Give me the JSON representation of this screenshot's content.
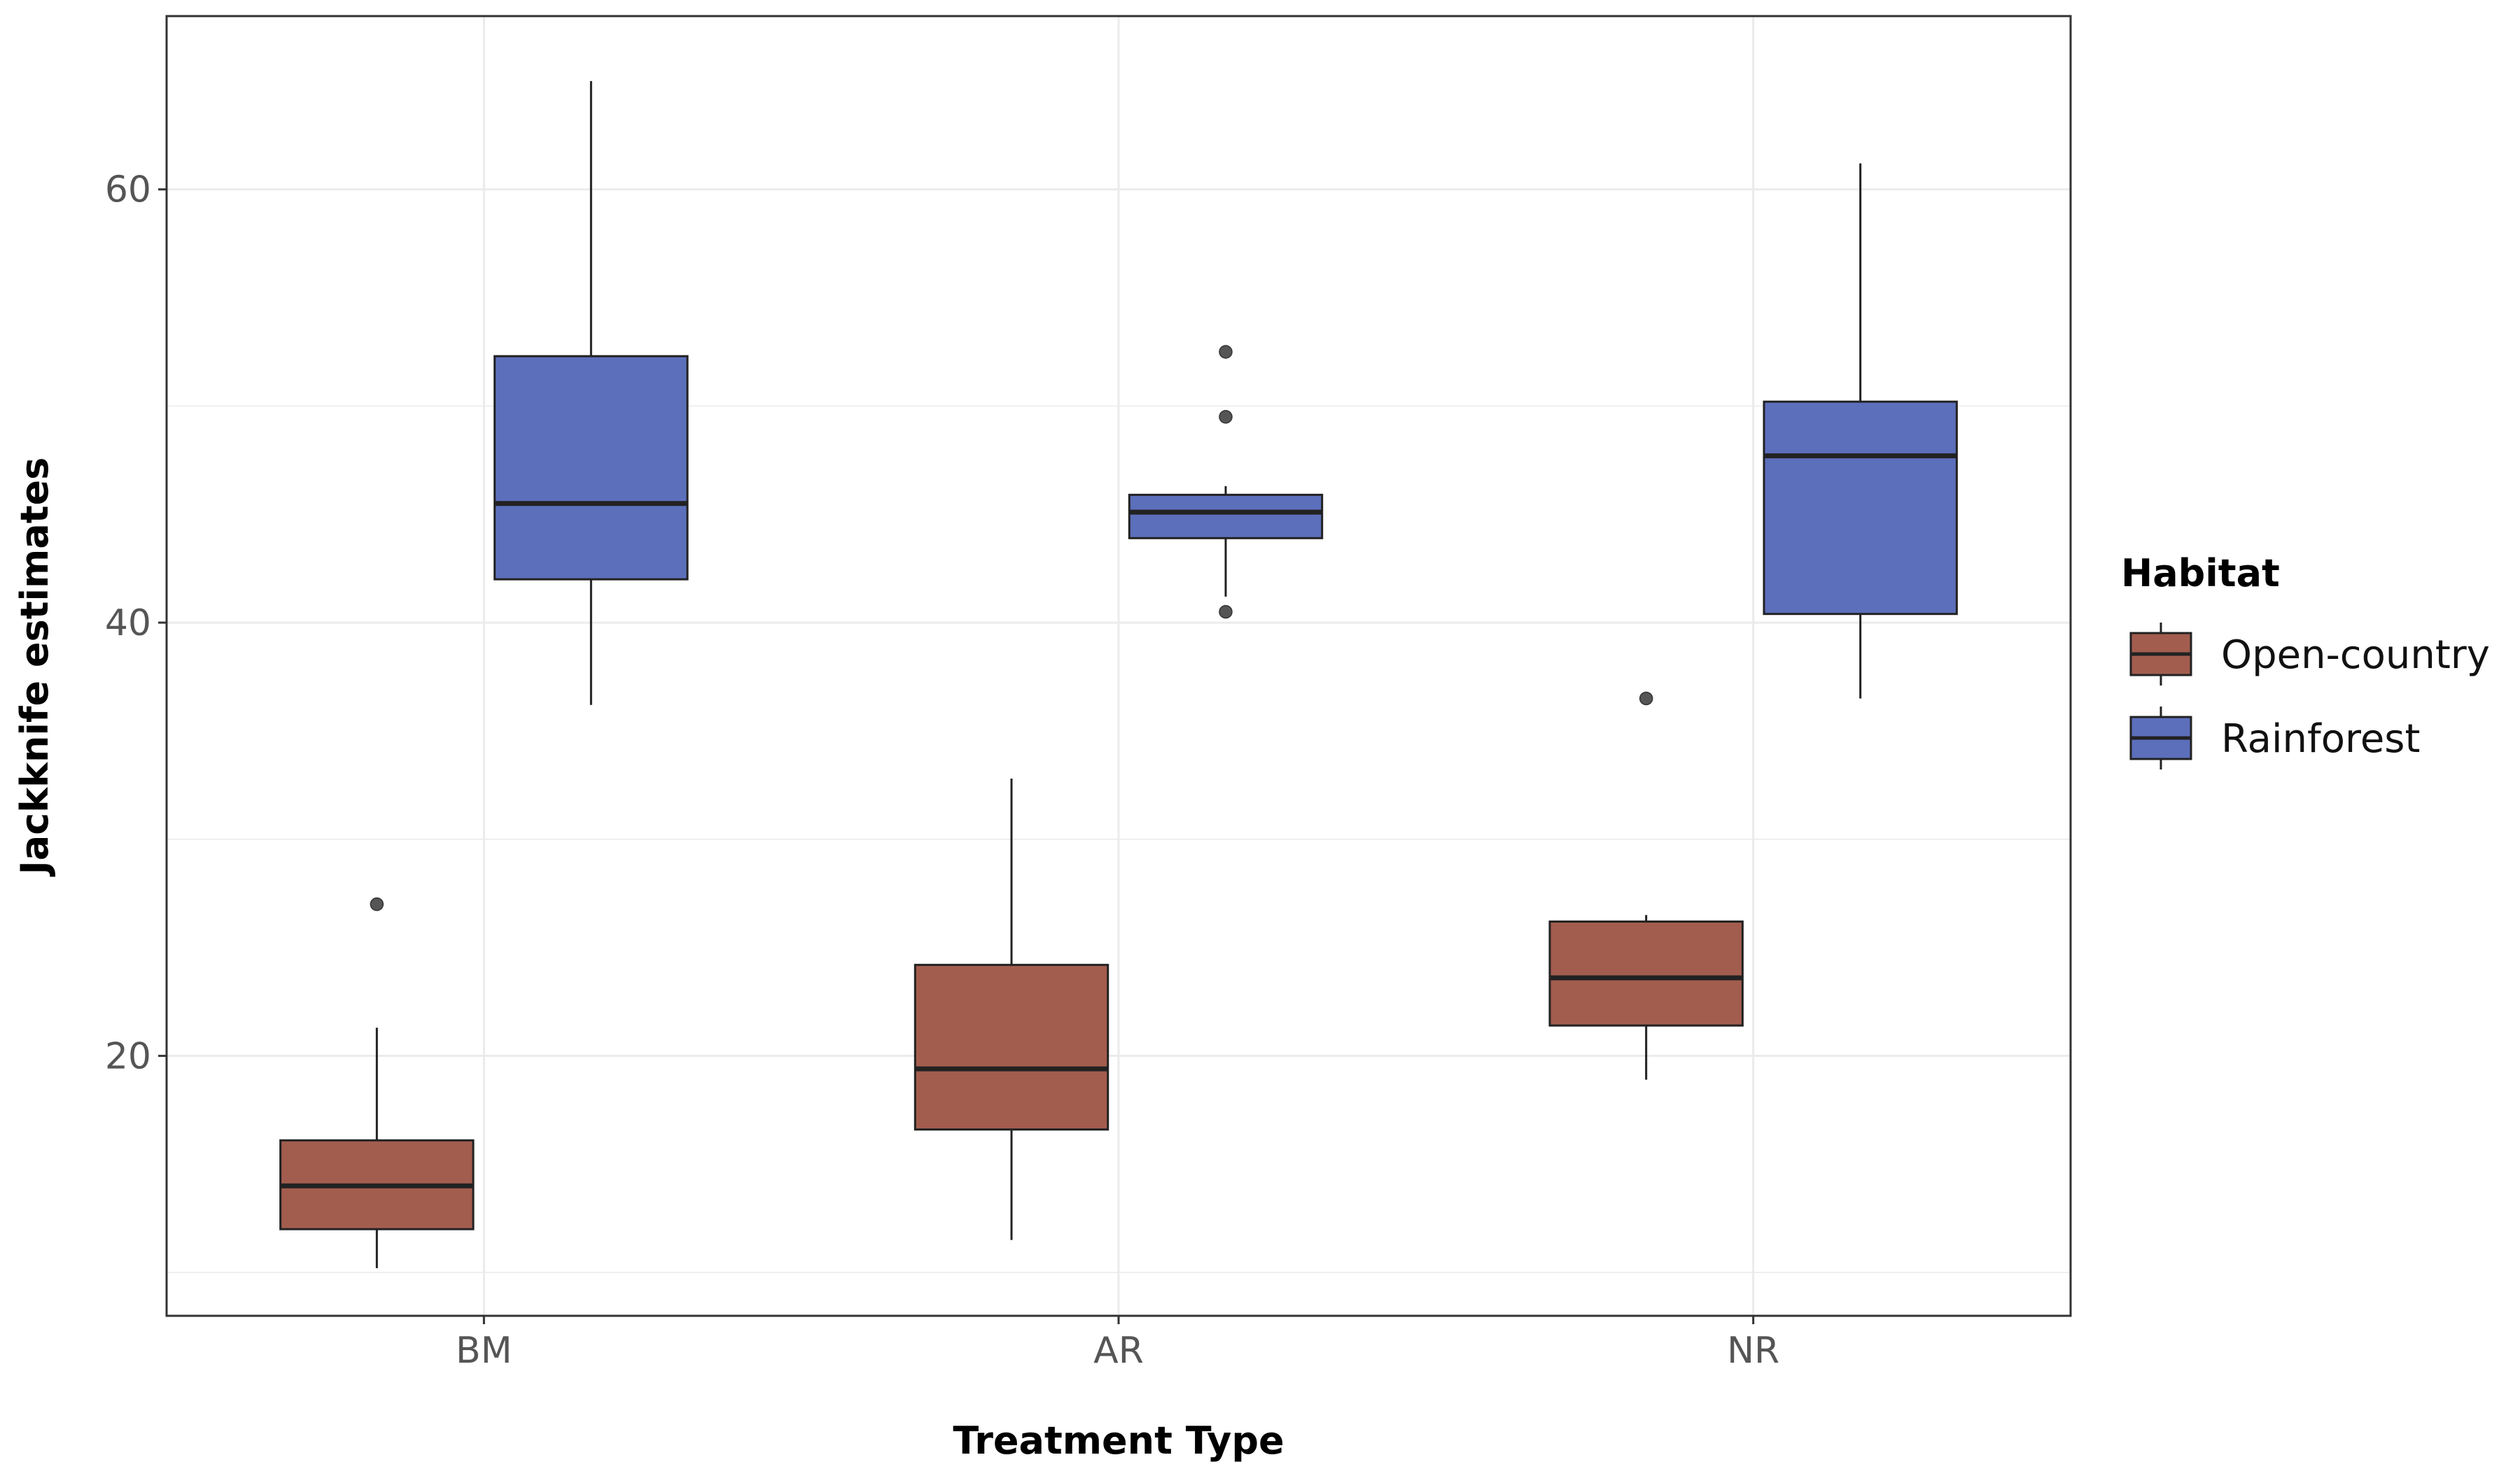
{
  "chart_data": {
    "type": "boxplot",
    "xlabel": "Treatment Type",
    "ylabel": "Jackknife estimates",
    "categories": [
      "BM",
      "AR",
      "NR"
    ],
    "ylim": [
      8,
      68
    ],
    "y_ticks": [
      20,
      40,
      60
    ],
    "grid": true,
    "legend": {
      "title": "Habitat",
      "position": "right"
    },
    "series": [
      {
        "name": "Open-country",
        "color": "#A35D4E",
        "boxes": [
          {
            "category": "BM",
            "min": 10.2,
            "q1": 12.0,
            "median": 14.0,
            "q3": 16.1,
            "max": 21.3,
            "outliers": [
              27.0
            ]
          },
          {
            "category": "AR",
            "min": 11.5,
            "q1": 16.6,
            "median": 19.4,
            "q3": 24.2,
            "max": 32.8,
            "outliers": []
          },
          {
            "category": "NR",
            "min": 18.9,
            "q1": 21.4,
            "median": 23.6,
            "q3": 26.2,
            "max": 26.5,
            "outliers": [
              36.5
            ]
          }
        ]
      },
      {
        "name": "Rainforest",
        "color": "#5C6FBB",
        "boxes": [
          {
            "category": "BM",
            "min": 36.2,
            "q1": 42.0,
            "median": 45.5,
            "q3": 52.3,
            "max": 65.0,
            "outliers": []
          },
          {
            "category": "AR",
            "min": 41.2,
            "q1": 43.9,
            "median": 45.1,
            "q3": 45.9,
            "max": 46.3,
            "outliers": [
              52.5,
              49.5,
              40.5
            ]
          },
          {
            "category": "NR",
            "min": 36.5,
            "q1": 40.4,
            "median": 47.7,
            "q3": 50.2,
            "max": 61.2,
            "outliers": []
          }
        ]
      }
    ]
  }
}
